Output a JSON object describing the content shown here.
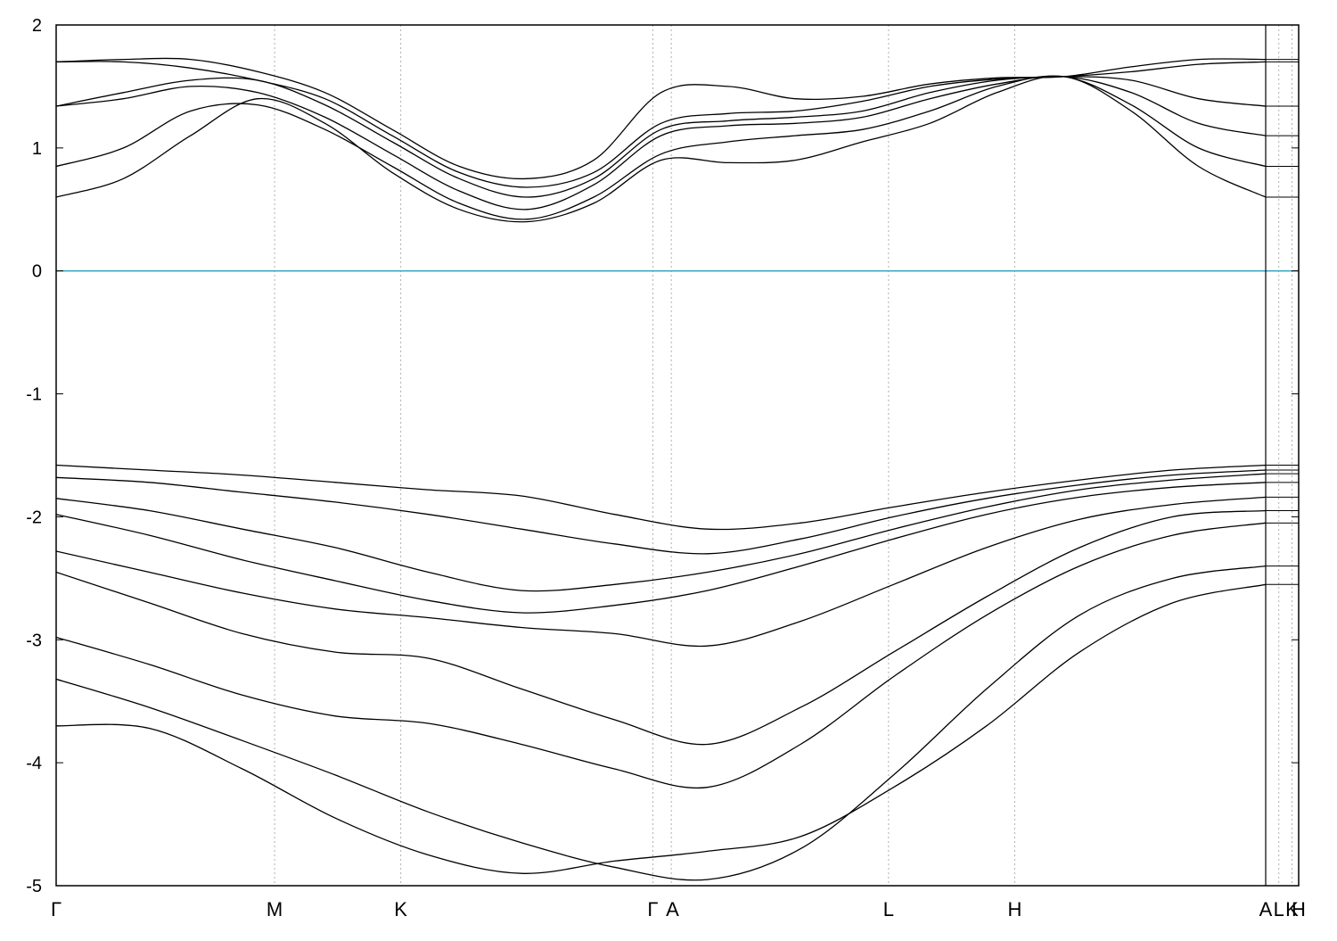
{
  "chart_data": {
    "type": "line",
    "title": "",
    "xlabel": "",
    "ylabel": "",
    "ylim": [
      -5,
      2
    ],
    "yticks": [
      2,
      1,
      0,
      -1,
      -2,
      -3,
      -4,
      -5
    ],
    "ytick_labels": [
      "2",
      "1",
      "0",
      "-1",
      "-2",
      "-3",
      "-4",
      "-5"
    ],
    "xlim": [
      0,
      1
    ],
    "k_points": [
      {
        "label": "Γ",
        "x": 0.0
      },
      {
        "label": "M",
        "x": 0.1806
      },
      {
        "label": "K",
        "x": 0.2849
      },
      {
        "label": "Γ",
        "x": 0.4934
      },
      {
        "label": "A",
        "x": 0.5086
      },
      {
        "label": "L",
        "x": 0.6882
      },
      {
        "label": "H",
        "x": 0.7925
      },
      {
        "label": "A",
        "x": 1.0
      },
      {
        "label": "L",
        "x": 1.0152
      },
      {
        "label": "K",
        "x": 1.0304
      },
      {
        "label": "H",
        "x": 1.0382
      }
    ],
    "fermi_level": 0,
    "grid": "vertical dashed at high-symmetry points",
    "colors": {
      "bands": "#000000",
      "fermi": "#3aa6c4",
      "grid": "#b0b0b0"
    },
    "series": [
      {
        "values": [
          0.6,
          0.75,
          1.1,
          1.4,
          1.2,
          0.8,
          0.5,
          0.4,
          0.55,
          0.9,
          0.88,
          0.9,
          1.05,
          1.2,
          1.45,
          1.58,
          1.3,
          0.85,
          0.6
        ]
      },
      {
        "values": [
          0.85,
          1.0,
          1.3,
          1.35,
          1.15,
          0.85,
          0.55,
          0.42,
          0.6,
          0.95,
          1.05,
          1.1,
          1.15,
          1.3,
          1.5,
          1.58,
          1.35,
          1.0,
          0.85
        ]
      },
      {
        "values": [
          1.34,
          1.4,
          1.5,
          1.45,
          1.25,
          0.95,
          0.65,
          0.5,
          0.7,
          1.1,
          1.18,
          1.2,
          1.25,
          1.4,
          1.52,
          1.58,
          1.45,
          1.2,
          1.1
        ]
      },
      {
        "values": [
          1.34,
          1.45,
          1.55,
          1.55,
          1.35,
          1.05,
          0.75,
          0.6,
          0.75,
          1.15,
          1.22,
          1.25,
          1.3,
          1.45,
          1.55,
          1.58,
          1.55,
          1.4,
          1.34
        ]
      },
      {
        "values": [
          1.7,
          1.7,
          1.65,
          1.55,
          1.4,
          1.1,
          0.8,
          0.68,
          0.8,
          1.2,
          1.28,
          1.3,
          1.38,
          1.5,
          1.56,
          1.58,
          1.62,
          1.68,
          1.7
        ]
      },
      {
        "values": [
          1.7,
          1.72,
          1.72,
          1.62,
          1.45,
          1.15,
          0.85,
          0.75,
          0.9,
          1.45,
          1.5,
          1.4,
          1.42,
          1.52,
          1.57,
          1.58,
          1.66,
          1.72,
          1.72
        ]
      },
      {
        "values": [
          -1.58,
          -1.62,
          -1.66,
          -1.72,
          -1.78,
          -1.83,
          -1.98,
          -2.1,
          -2.05,
          -1.92,
          -1.8,
          -1.7,
          -1.62,
          -1.58
        ]
      },
      {
        "values": [
          -1.68,
          -1.72,
          -1.8,
          -1.88,
          -1.98,
          -2.1,
          -2.22,
          -2.3,
          -2.18,
          -2.0,
          -1.85,
          -1.74,
          -1.66,
          -1.62
        ]
      },
      {
        "values": [
          -1.85,
          -1.95,
          -2.1,
          -2.25,
          -2.45,
          -2.6,
          -2.55,
          -2.45,
          -2.3,
          -2.1,
          -1.92,
          -1.78,
          -1.7,
          -1.65
        ]
      },
      {
        "values": [
          -1.98,
          -2.15,
          -2.35,
          -2.52,
          -2.68,
          -2.78,
          -2.72,
          -2.6,
          -2.4,
          -2.18,
          -1.98,
          -1.84,
          -1.76,
          -1.72
        ]
      },
      {
        "values": [
          -2.28,
          -2.45,
          -2.62,
          -2.75,
          -2.82,
          -2.9,
          -2.95,
          -3.05,
          -2.85,
          -2.55,
          -2.25,
          -2.02,
          -1.9,
          -1.84
        ]
      },
      {
        "values": [
          -2.45,
          -2.7,
          -2.95,
          -3.1,
          -3.15,
          -3.4,
          -3.65,
          -3.85,
          -3.55,
          -3.1,
          -2.65,
          -2.25,
          -2.0,
          -1.95
        ]
      },
      {
        "values": [
          -2.98,
          -3.2,
          -3.45,
          -3.62,
          -3.68,
          -3.85,
          -4.05,
          -4.2,
          -3.85,
          -3.3,
          -2.8,
          -2.4,
          -2.15,
          -2.05
        ]
      },
      {
        "values": [
          -3.32,
          -3.55,
          -3.82,
          -4.1,
          -4.4,
          -4.65,
          -4.85,
          -4.95,
          -4.7,
          -4.1,
          -3.4,
          -2.8,
          -2.5,
          -2.4
        ]
      },
      {
        "values": [
          -3.7,
          -3.72,
          -4.05,
          -4.45,
          -4.75,
          -4.9,
          -4.8,
          -4.72,
          -4.6,
          -4.2,
          -3.7,
          -3.1,
          -2.7,
          -2.55
        ]
      }
    ]
  }
}
